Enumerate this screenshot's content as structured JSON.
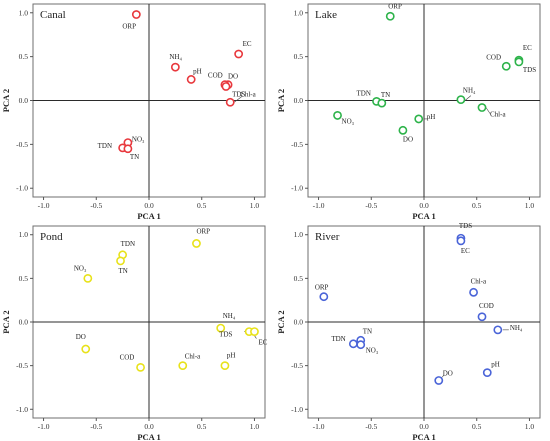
{
  "chart_data": [
    {
      "type": "scatter",
      "title": "Canal",
      "xlabel": "PCA 1",
      "ylabel": "PCA 2",
      "xlim": [
        -1.1,
        1.1
      ],
      "ylim": [
        -1.1,
        1.1
      ],
      "xticks": [
        "-1.0",
        "-0.5",
        "0.0",
        "0.5",
        "1.0"
      ],
      "yticks": [
        "1.0",
        "0.5",
        "0.0",
        "-0.5",
        "-1.0"
      ],
      "color": "#e8383d",
      "points": [
        {
          "label": "ORP",
          "x": -0.12,
          "y": 0.98
        },
        {
          "label": "EC",
          "x": 0.85,
          "y": 0.53
        },
        {
          "label": "TDS",
          "x": 0.75,
          "y": 0.18
        },
        {
          "label": "NH₄",
          "x": 0.25,
          "y": 0.38
        },
        {
          "label": "pH",
          "x": 0.4,
          "y": 0.24
        },
        {
          "label": "COD",
          "x": 0.72,
          "y": 0.18
        },
        {
          "label": "DO",
          "x": 0.73,
          "y": 0.16
        },
        {
          "label": "Chl-a",
          "x": 0.77,
          "y": -0.02
        },
        {
          "label": "NO₃",
          "x": -0.2,
          "y": -0.48
        },
        {
          "label": "TDN",
          "x": -0.25,
          "y": -0.54
        },
        {
          "label": "TN",
          "x": -0.2,
          "y": -0.55
        }
      ]
    },
    {
      "type": "scatter",
      "title": "Lake",
      "xlabel": "PCA 1",
      "ylabel": "PCA 2",
      "xlim": [
        -1.1,
        1.1
      ],
      "ylim": [
        -1.1,
        1.1
      ],
      "xticks": [
        "-1.0",
        "-0.5",
        "0.0",
        "0.5",
        "1.0"
      ],
      "yticks": [
        "1.0",
        "0.5",
        "0.0",
        "-0.5",
        "-1.0"
      ],
      "color": "#2db34a",
      "points": [
        {
          "label": "ORP",
          "x": -0.32,
          "y": 0.96
        },
        {
          "label": "EC",
          "x": 0.9,
          "y": 0.46
        },
        {
          "label": "COD",
          "x": 0.78,
          "y": 0.39
        },
        {
          "label": "TDS",
          "x": 0.9,
          "y": 0.44
        },
        {
          "label": "NH₄",
          "x": 0.35,
          "y": 0.01
        },
        {
          "label": "Chl-a",
          "x": 0.55,
          "y": -0.08
        },
        {
          "label": "TDN",
          "x": -0.45,
          "y": -0.01
        },
        {
          "label": "TN",
          "x": -0.4,
          "y": -0.03
        },
        {
          "label": "NO₃",
          "x": -0.82,
          "y": -0.17
        },
        {
          "label": "pH",
          "x": -0.05,
          "y": -0.21
        },
        {
          "label": "DO",
          "x": -0.2,
          "y": -0.34
        }
      ]
    },
    {
      "type": "scatter",
      "title": "Pond",
      "xlabel": "PCA 1",
      "ylabel": "PCA 2",
      "xlim": [
        -1.1,
        1.1
      ],
      "ylim": [
        -1.1,
        1.1
      ],
      "xticks": [
        "-1.0",
        "-0.5",
        "0.0",
        "0.5",
        "1.0"
      ],
      "yticks": [
        "1.0",
        "0.5",
        "0.0",
        "-0.5",
        "-1.0"
      ],
      "color": "#e8e21a",
      "points": [
        {
          "label": "ORP",
          "x": 0.45,
          "y": 0.9
        },
        {
          "label": "TDN",
          "x": -0.25,
          "y": 0.77
        },
        {
          "label": "TN",
          "x": -0.27,
          "y": 0.7
        },
        {
          "label": "NO₃",
          "x": -0.58,
          "y": 0.5
        },
        {
          "label": "NH₄",
          "x": 0.68,
          "y": -0.07
        },
        {
          "label": "TDS",
          "x": 0.95,
          "y": -0.11
        },
        {
          "label": "EC",
          "x": 1.0,
          "y": -0.11
        },
        {
          "label": "DO",
          "x": -0.6,
          "y": -0.31
        },
        {
          "label": "COD",
          "x": -0.08,
          "y": -0.52
        },
        {
          "label": "Chl-a",
          "x": 0.32,
          "y": -0.5
        },
        {
          "label": "pH",
          "x": 0.72,
          "y": -0.5
        }
      ]
    },
    {
      "type": "scatter",
      "title": "River",
      "xlabel": "PCA 1",
      "ylabel": "PCA 2",
      "xlim": [
        -1.1,
        1.1
      ],
      "ylim": [
        -1.1,
        1.1
      ],
      "xticks": [
        "-1.0",
        "-0.5",
        "0.0",
        "0.5",
        "1.0"
      ],
      "yticks": [
        "1.0",
        "0.5",
        "0.0",
        "-0.5",
        "-1.0"
      ],
      "color": "#4a64d8",
      "points": [
        {
          "label": "ORP",
          "x": -0.95,
          "y": 0.29
        },
        {
          "label": "TDS",
          "x": 0.35,
          "y": 0.96
        },
        {
          "label": "EC",
          "x": 0.35,
          "y": 0.93
        },
        {
          "label": "Chl-a",
          "x": 0.47,
          "y": 0.34
        },
        {
          "label": "COD",
          "x": 0.55,
          "y": 0.06
        },
        {
          "label": "NH₄",
          "x": 0.7,
          "y": -0.09
        },
        {
          "label": "TDN",
          "x": -0.67,
          "y": -0.25
        },
        {
          "label": "TN",
          "x": -0.6,
          "y": -0.21
        },
        {
          "label": "NO₃",
          "x": -0.6,
          "y": -0.26
        },
        {
          "label": "DO",
          "x": 0.14,
          "y": -0.67
        },
        {
          "label": "pH",
          "x": 0.6,
          "y": -0.58
        }
      ]
    }
  ]
}
